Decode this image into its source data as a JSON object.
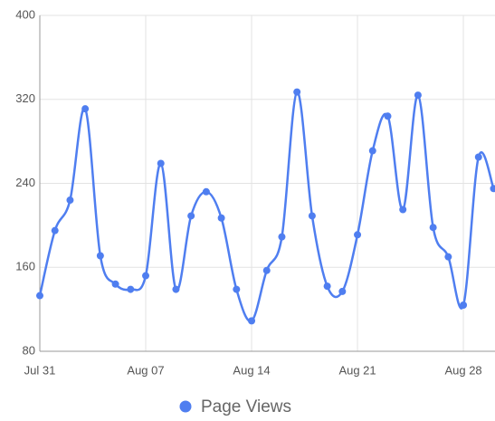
{
  "chart_data": {
    "type": "line",
    "categories": [
      "Jul 31",
      null,
      null,
      null,
      null,
      null,
      null,
      "Aug 07",
      null,
      null,
      null,
      null,
      null,
      null,
      "Aug 14",
      null,
      null,
      null,
      null,
      null,
      null,
      "Aug 21",
      null,
      null,
      null,
      null,
      null,
      null,
      "Aug 28",
      null,
      null
    ],
    "series": [
      {
        "name": "Page Views",
        "color": "#4f7ef0",
        "values": [
          133,
          195,
          224,
          311,
          171,
          144,
          139,
          152,
          259,
          139,
          209,
          232,
          207,
          139,
          109,
          157,
          189,
          327,
          209,
          142,
          137,
          191,
          271,
          304,
          215,
          324,
          198,
          170,
          124,
          265,
          235
        ]
      }
    ],
    "ylim": [
      80,
      400
    ],
    "yticks": [
      80,
      160,
      240,
      320,
      400
    ],
    "grid": true,
    "legend": "bottom"
  }
}
